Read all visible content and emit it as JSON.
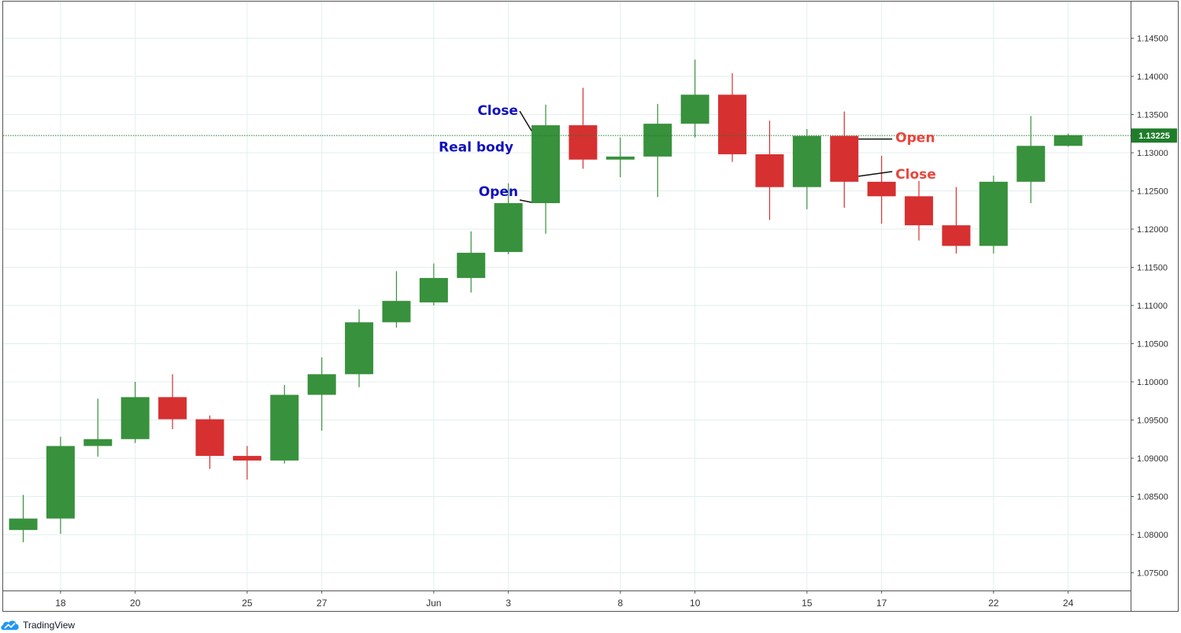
{
  "colors": {
    "up": "#38913c",
    "down": "#d63031",
    "grid": "#e3eeee",
    "axis": "#555555",
    "price_line": "#1f7d2a",
    "annotation_blue": "#1111bb",
    "annotation_red": "#e8453c",
    "logo": "#2196f3"
  },
  "footer": {
    "brand": "TradingView",
    "logo_icon": "tradingview-cloud-icon"
  },
  "chart_data": {
    "type": "candlestick",
    "ylim": [
      1.0725,
      1.1495
    ],
    "y_ticks": [
      1.075,
      1.08,
      1.085,
      1.09,
      1.095,
      1.1,
      1.105,
      1.11,
      1.115,
      1.12,
      1.125,
      1.13,
      1.135,
      1.14,
      1.145
    ],
    "y_tick_labels": [
      "1.07500",
      "1.08000",
      "1.08500",
      "1.09000",
      "1.09500",
      "1.10000",
      "1.10500",
      "1.11000",
      "1.11500",
      "1.12000",
      "1.12500",
      "1.13000",
      "1.13500",
      "1.14000",
      "1.14500"
    ],
    "x_tick_labels": [
      {
        "label": "18",
        "date": "2020-05-18"
      },
      {
        "label": "20",
        "date": "2020-05-20"
      },
      {
        "label": "25",
        "date": "2020-05-25"
      },
      {
        "label": "27",
        "date": "2020-05-27"
      },
      {
        "label": "Jun",
        "date": "2020-06-01"
      },
      {
        "label": "3",
        "date": "2020-06-03"
      },
      {
        "label": "8",
        "date": "2020-06-08"
      },
      {
        "label": "10",
        "date": "2020-06-10"
      },
      {
        "label": "15",
        "date": "2020-06-15"
      },
      {
        "label": "17",
        "date": "2020-06-17"
      },
      {
        "label": "22",
        "date": "2020-06-22"
      },
      {
        "label": "24",
        "date": "2020-06-24"
      }
    ],
    "candles": [
      {
        "date": "2020-05-15",
        "open": 1.0806,
        "high": 1.0852,
        "low": 1.079,
        "close": 1.0821
      },
      {
        "date": "2020-05-18",
        "open": 1.0821,
        "high": 1.0928,
        "low": 1.0801,
        "close": 1.0916
      },
      {
        "date": "2020-05-19",
        "open": 1.0916,
        "high": 1.0978,
        "low": 1.0902,
        "close": 1.0925
      },
      {
        "date": "2020-05-20",
        "open": 1.0925,
        "high": 1.1,
        "low": 1.092,
        "close": 1.098
      },
      {
        "date": "2020-05-21",
        "open": 1.098,
        "high": 1.101,
        "low": 1.0938,
        "close": 1.0951
      },
      {
        "date": "2020-05-22",
        "open": 1.0951,
        "high": 1.0956,
        "low": 1.0886,
        "close": 1.0903
      },
      {
        "date": "2020-05-25",
        "open": 1.0903,
        "high": 1.0916,
        "low": 1.0872,
        "close": 1.0897
      },
      {
        "date": "2020-05-26",
        "open": 1.0897,
        "high": 1.0996,
        "low": 1.0893,
        "close": 1.0983
      },
      {
        "date": "2020-05-27",
        "open": 1.0983,
        "high": 1.1032,
        "low": 1.0936,
        "close": 1.101
      },
      {
        "date": "2020-05-28",
        "open": 1.101,
        "high": 1.1095,
        "low": 1.0993,
        "close": 1.1078
      },
      {
        "date": "2020-05-29",
        "open": 1.1078,
        "high": 1.1145,
        "low": 1.1071,
        "close": 1.1106
      },
      {
        "date": "2020-06-01",
        "open": 1.1104,
        "high": 1.1155,
        "low": 1.11,
        "close": 1.1136
      },
      {
        "date": "2020-06-02",
        "open": 1.1136,
        "high": 1.1197,
        "low": 1.1117,
        "close": 1.1169
      },
      {
        "date": "2020-06-03",
        "open": 1.117,
        "high": 1.126,
        "low": 1.1167,
        "close": 1.1234
      },
      {
        "date": "2020-06-04",
        "open": 1.1234,
        "high": 1.1363,
        "low": 1.1194,
        "close": 1.1336
      },
      {
        "date": "2020-06-05",
        "open": 1.1336,
        "high": 1.1385,
        "low": 1.1279,
        "close": 1.1291
      },
      {
        "date": "2020-06-08",
        "open": 1.1291,
        "high": 1.132,
        "low": 1.1268,
        "close": 1.1295
      },
      {
        "date": "2020-06-09",
        "open": 1.1295,
        "high": 1.1364,
        "low": 1.1242,
        "close": 1.1338
      },
      {
        "date": "2020-06-10",
        "open": 1.1338,
        "high": 1.1422,
        "low": 1.132,
        "close": 1.1376
      },
      {
        "date": "2020-06-11",
        "open": 1.1376,
        "high": 1.1404,
        "low": 1.1288,
        "close": 1.1298
      },
      {
        "date": "2020-06-12",
        "open": 1.1298,
        "high": 1.1342,
        "low": 1.1212,
        "close": 1.1255
      },
      {
        "date": "2020-06-15",
        "open": 1.1255,
        "high": 1.1331,
        "low": 1.1226,
        "close": 1.1322
      },
      {
        "date": "2020-06-16",
        "open": 1.1322,
        "high": 1.1354,
        "low": 1.1228,
        "close": 1.1262
      },
      {
        "date": "2020-06-17",
        "open": 1.1262,
        "high": 1.1296,
        "low": 1.1207,
        "close": 1.1243
      },
      {
        "date": "2020-06-18",
        "open": 1.1243,
        "high": 1.1263,
        "low": 1.1185,
        "close": 1.1205
      },
      {
        "date": "2020-06-19",
        "open": 1.1205,
        "high": 1.1255,
        "low": 1.1168,
        "close": 1.1178
      },
      {
        "date": "2020-06-22",
        "open": 1.1178,
        "high": 1.127,
        "low": 1.1168,
        "close": 1.1262
      },
      {
        "date": "2020-06-23",
        "open": 1.1262,
        "high": 1.1348,
        "low": 1.1234,
        "close": 1.1309
      },
      {
        "date": "2020-06-24",
        "open": 1.1309,
        "high": 1.1325,
        "low": 1.1308,
        "close": 1.1323
      }
    ],
    "last_price": 1.13225,
    "last_price_label": "1.13225",
    "annotations": [
      {
        "text": "Close",
        "color": "blue",
        "candle_date": "2020-06-04",
        "points_to": "close"
      },
      {
        "text": "Real body",
        "color": "blue",
        "candle_date": "2020-06-04",
        "points_to": "body"
      },
      {
        "text": "Open",
        "color": "blue",
        "candle_date": "2020-06-04",
        "points_to": "open"
      },
      {
        "text": "Open",
        "color": "red",
        "candle_date": "2020-06-16",
        "points_to": "open"
      },
      {
        "text": "Close",
        "color": "red",
        "candle_date": "2020-06-16",
        "points_to": "close"
      }
    ]
  }
}
